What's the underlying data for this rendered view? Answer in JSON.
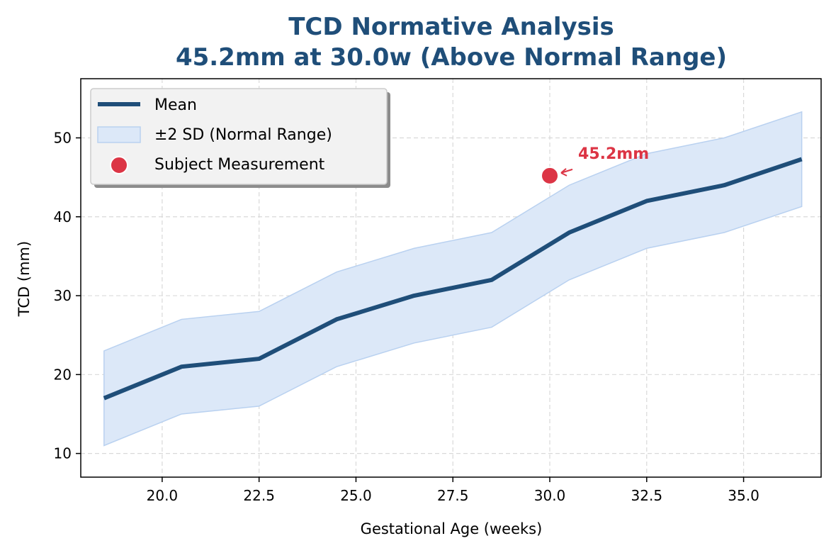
{
  "chart_data": {
    "type": "line",
    "title_line1": "TCD Normative Analysis",
    "title_line2": "45.2mm at 30.0w (Above Normal Range)",
    "xlabel": "Gestational Age (weeks)",
    "ylabel": "TCD (mm)",
    "xlim": [
      17.9,
      37.0
    ],
    "ylim": [
      7.0,
      57.5
    ],
    "xticks": [
      20.0,
      22.5,
      25.0,
      27.5,
      30.0,
      32.5,
      35.0
    ],
    "xtick_labels": [
      "20.0",
      "22.5",
      "25.0",
      "27.5",
      "30.0",
      "32.5",
      "35.0"
    ],
    "yticks": [
      10,
      20,
      30,
      40,
      50
    ],
    "ytick_labels": [
      "10",
      "20",
      "30",
      "40",
      "50"
    ],
    "grid": true,
    "legend_position": "top-left",
    "series": [
      {
        "name": "Mean",
        "x": [
          18.5,
          20.5,
          22.5,
          24.5,
          26.5,
          28.5,
          30.5,
          32.5,
          34.5,
          36.5
        ],
        "values": [
          17,
          21,
          22,
          27,
          30,
          32,
          38,
          42,
          44,
          47.3
        ]
      },
      {
        "name": "±2 SD (Normal Range)",
        "x": [
          18.5,
          20.5,
          22.5,
          24.5,
          26.5,
          28.5,
          30.5,
          32.5,
          34.5,
          36.5
        ],
        "lower": [
          11,
          15,
          16,
          21,
          24,
          26,
          32,
          36,
          38,
          41.3
        ],
        "upper": [
          23,
          27,
          28,
          33,
          36,
          38,
          44,
          48,
          50,
          53.3
        ]
      },
      {
        "name": "Subject Measurement",
        "x": [
          30.0
        ],
        "values": [
          45.2
        ]
      }
    ],
    "annotation": {
      "text": "45.2mm",
      "x": 30.0,
      "y": 45.2
    },
    "colors": {
      "mean": "#1f4e79",
      "band_fill": "#dce8f8",
      "band_edge": "#b9d1f0",
      "subject": "#dc3545",
      "title": "#1f4e79",
      "grid": "#d9d9d9"
    }
  }
}
